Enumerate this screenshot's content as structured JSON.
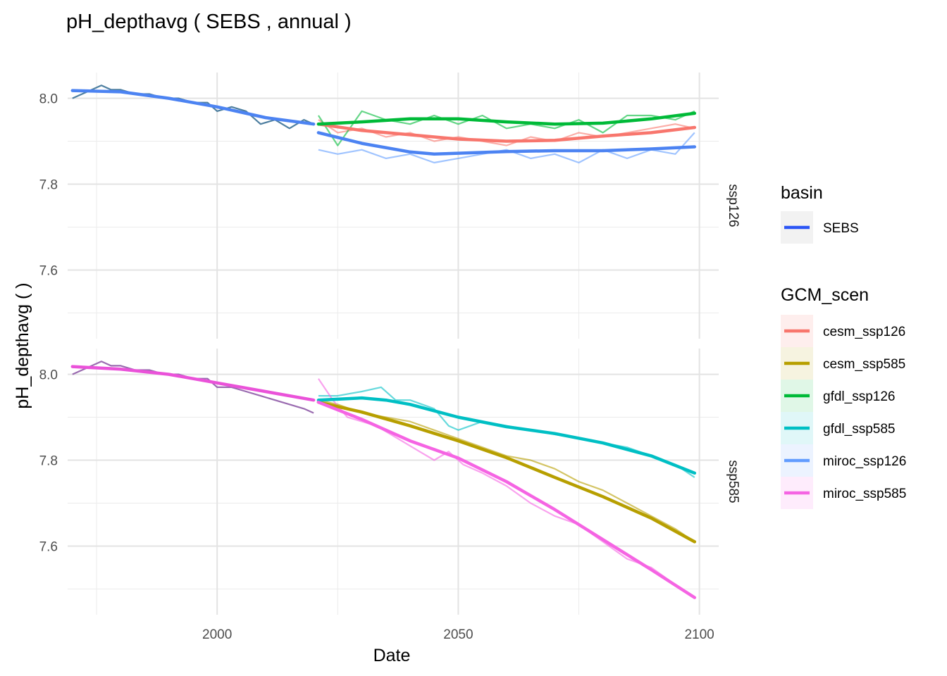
{
  "chart_data": {
    "type": "line",
    "title": "pH_depthavg ( SEBS , annual )",
    "xlabel": "Date",
    "ylabel": "pH_depthavg (  )",
    "xlim": [
      1969,
      2104
    ],
    "ylim": [
      7.44,
      8.06
    ],
    "x_ticks": [
      2000,
      2050,
      2100
    ],
    "x_tick_labels": [
      "2000",
      "2050",
      "2100"
    ],
    "y_ticks": [
      7.6,
      7.8,
      8.0
    ],
    "y_tick_labels": [
      "7.6",
      "7.8",
      "8.0"
    ],
    "grid": true,
    "facets": [
      {
        "label": "ssp126",
        "series": [
          {
            "name": "cesm_ssp126",
            "color": "#F8766D",
            "raw": [
              [
                2021,
                7.95
              ],
              [
                2025,
                7.92
              ],
              [
                2030,
                7.93
              ],
              [
                2035,
                7.91
              ],
              [
                2040,
                7.92
              ],
              [
                2045,
                7.9
              ],
              [
                2050,
                7.91
              ],
              [
                2055,
                7.9
              ],
              [
                2060,
                7.89
              ],
              [
                2065,
                7.91
              ],
              [
                2070,
                7.9
              ],
              [
                2075,
                7.92
              ],
              [
                2080,
                7.91
              ],
              [
                2085,
                7.92
              ],
              [
                2090,
                7.93
              ],
              [
                2095,
                7.94
              ],
              [
                2099,
                7.93
              ]
            ],
            "smooth": [
              [
                2021,
                7.94
              ],
              [
                2030,
                7.925
              ],
              [
                2040,
                7.915
              ],
              [
                2050,
                7.905
              ],
              [
                2060,
                7.9
              ],
              [
                2070,
                7.902
              ],
              [
                2080,
                7.912
              ],
              [
                2090,
                7.92
              ],
              [
                2099,
                7.932
              ]
            ]
          },
          {
            "name": "gfdl_ssp126",
            "color": "#00BA38",
            "raw": [
              [
                2021,
                7.96
              ],
              [
                2025,
                7.89
              ],
              [
                2030,
                7.97
              ],
              [
                2035,
                7.95
              ],
              [
                2040,
                7.94
              ],
              [
                2045,
                7.96
              ],
              [
                2050,
                7.94
              ],
              [
                2055,
                7.96
              ],
              [
                2060,
                7.93
              ],
              [
                2065,
                7.94
              ],
              [
                2070,
                7.93
              ],
              [
                2075,
                7.95
              ],
              [
                2080,
                7.92
              ],
              [
                2085,
                7.96
              ],
              [
                2090,
                7.96
              ],
              [
                2095,
                7.95
              ],
              [
                2099,
                7.97
              ]
            ],
            "smooth": [
              [
                2021,
                7.94
              ],
              [
                2030,
                7.945
              ],
              [
                2040,
                7.952
              ],
              [
                2050,
                7.952
              ],
              [
                2060,
                7.945
              ],
              [
                2070,
                7.94
              ],
              [
                2080,
                7.942
              ],
              [
                2090,
                7.952
              ],
              [
                2099,
                7.965
              ]
            ]
          },
          {
            "name": "miroc_ssp126",
            "color": "#619CFF",
            "raw": [
              [
                2021,
                7.88
              ],
              [
                2025,
                7.87
              ],
              [
                2030,
                7.88
              ],
              [
                2035,
                7.86
              ],
              [
                2040,
                7.87
              ],
              [
                2045,
                7.85
              ],
              [
                2050,
                7.86
              ],
              [
                2055,
                7.87
              ],
              [
                2060,
                7.88
              ],
              [
                2065,
                7.86
              ],
              [
                2070,
                7.87
              ],
              [
                2075,
                7.85
              ],
              [
                2080,
                7.88
              ],
              [
                2085,
                7.86
              ],
              [
                2090,
                7.88
              ],
              [
                2095,
                7.87
              ],
              [
                2099,
                7.92
              ]
            ],
            "smooth": [
              [
                2021,
                7.92
              ],
              [
                2030,
                7.895
              ],
              [
                2040,
                7.875
              ],
              [
                2045,
                7.87
              ],
              [
                2050,
                7.872
              ],
              [
                2060,
                7.876
              ],
              [
                2070,
                7.878
              ],
              [
                2080,
                7.878
              ],
              [
                2090,
                7.882
              ],
              [
                2099,
                7.887
              ]
            ]
          }
        ],
        "historical": {
          "raw": [
            [
              1970,
              8.0
            ],
            [
              1972,
              8.01
            ],
            [
              1974,
              8.02
            ],
            [
              1976,
              8.03
            ],
            [
              1978,
              8.02
            ],
            [
              1980,
              8.02
            ],
            [
              1983,
              8.01
            ],
            [
              1986,
              8.01
            ],
            [
              1989,
              8.0
            ],
            [
              1992,
              8.0
            ],
            [
              1995,
              7.99
            ],
            [
              1998,
              7.99
            ],
            [
              2000,
              7.97
            ],
            [
              2003,
              7.98
            ],
            [
              2006,
              7.97
            ],
            [
              2009,
              7.94
            ],
            [
              2012,
              7.95
            ],
            [
              2015,
              7.93
            ],
            [
              2018,
              7.95
            ],
            [
              2020,
              7.94
            ]
          ],
          "smooth": [
            [
              1970,
              8.018
            ],
            [
              1980,
              8.015
            ],
            [
              1990,
              8.0
            ],
            [
              2000,
              7.98
            ],
            [
              2010,
              7.955
            ],
            [
              2020,
              7.94
            ]
          ]
        }
      },
      {
        "label": "ssp585",
        "series": [
          {
            "name": "cesm_ssp585",
            "color": "#B79F00",
            "raw": [
              [
                2021,
                7.94
              ],
              [
                2025,
                7.93
              ],
              [
                2030,
                7.91
              ],
              [
                2035,
                7.9
              ],
              [
                2040,
                7.89
              ],
              [
                2045,
                7.87
              ],
              [
                2050,
                7.85
              ],
              [
                2055,
                7.83
              ],
              [
                2060,
                7.81
              ],
              [
                2065,
                7.8
              ],
              [
                2070,
                7.78
              ],
              [
                2075,
                7.75
              ],
              [
                2080,
                7.73
              ],
              [
                2085,
                7.7
              ],
              [
                2090,
                7.67
              ],
              [
                2095,
                7.64
              ],
              [
                2099,
                7.61
              ]
            ],
            "smooth": [
              [
                2021,
                7.935
              ],
              [
                2030,
                7.912
              ],
              [
                2040,
                7.88
              ],
              [
                2050,
                7.845
              ],
              [
                2060,
                7.806
              ],
              [
                2070,
                7.76
              ],
              [
                2080,
                7.715
              ],
              [
                2090,
                7.665
              ],
              [
                2099,
                7.61
              ]
            ]
          },
          {
            "name": "gfdl_ssp585",
            "color": "#00BFC4",
            "raw": [
              [
                2021,
                7.95
              ],
              [
                2025,
                7.95
              ],
              [
                2030,
                7.96
              ],
              [
                2034,
                7.97
              ],
              [
                2037,
                7.94
              ],
              [
                2040,
                7.94
              ],
              [
                2045,
                7.92
              ],
              [
                2048,
                7.88
              ],
              [
                2050,
                7.87
              ],
              [
                2055,
                7.89
              ],
              [
                2060,
                7.88
              ],
              [
                2065,
                7.87
              ],
              [
                2070,
                7.86
              ],
              [
                2075,
                7.85
              ],
              [
                2080,
                7.84
              ],
              [
                2085,
                7.83
              ],
              [
                2090,
                7.81
              ],
              [
                2095,
                7.79
              ],
              [
                2099,
                7.76
              ]
            ],
            "smooth": [
              [
                2021,
                7.94
              ],
              [
                2030,
                7.945
              ],
              [
                2035,
                7.94
              ],
              [
                2040,
                7.93
              ],
              [
                2050,
                7.9
              ],
              [
                2060,
                7.878
              ],
              [
                2070,
                7.862
              ],
              [
                2080,
                7.84
              ],
              [
                2090,
                7.81
              ],
              [
                2099,
                7.77
              ]
            ]
          },
          {
            "name": "miroc_ssp585",
            "color": "#F564E3",
            "raw": [
              [
                2021,
                7.99
              ],
              [
                2024,
                7.94
              ],
              [
                2027,
                7.9
              ],
              [
                2030,
                7.89
              ],
              [
                2033,
                7.88
              ],
              [
                2036,
                7.86
              ],
              [
                2039,
                7.84
              ],
              [
                2042,
                7.82
              ],
              [
                2045,
                7.8
              ],
              [
                2048,
                7.82
              ],
              [
                2051,
                7.79
              ],
              [
                2055,
                7.77
              ],
              [
                2060,
                7.74
              ],
              [
                2065,
                7.7
              ],
              [
                2070,
                7.67
              ],
              [
                2075,
                7.65
              ],
              [
                2080,
                7.61
              ],
              [
                2085,
                7.57
              ],
              [
                2090,
                7.55
              ],
              [
                2095,
                7.51
              ],
              [
                2099,
                7.48
              ]
            ],
            "smooth": [
              [
                2021,
                7.935
              ],
              [
                2030,
                7.895
              ],
              [
                2040,
                7.845
              ],
              [
                2050,
                7.805
              ],
              [
                2060,
                7.75
              ],
              [
                2070,
                7.685
              ],
              [
                2080,
                7.615
              ],
              [
                2090,
                7.545
              ],
              [
                2099,
                7.48
              ]
            ]
          }
        ],
        "historical": {
          "raw": [
            [
              1970,
              8.0
            ],
            [
              1972,
              8.01
            ],
            [
              1974,
              8.02
            ],
            [
              1976,
              8.03
            ],
            [
              1978,
              8.02
            ],
            [
              1980,
              8.02
            ],
            [
              1983,
              8.01
            ],
            [
              1986,
              8.01
            ],
            [
              1989,
              8.0
            ],
            [
              1992,
              8.0
            ],
            [
              1995,
              7.99
            ],
            [
              1998,
              7.99
            ],
            [
              2000,
              7.97
            ],
            [
              2003,
              7.97
            ],
            [
              2006,
              7.96
            ],
            [
              2009,
              7.95
            ],
            [
              2012,
              7.94
            ],
            [
              2015,
              7.93
            ],
            [
              2018,
              7.92
            ],
            [
              2020,
              7.91
            ]
          ],
          "smooth": [
            [
              1970,
              8.018
            ],
            [
              1980,
              8.012
            ],
            [
              1990,
              8.0
            ],
            [
              2000,
              7.98
            ],
            [
              2010,
              7.96
            ],
            [
              2020,
              7.94
            ]
          ]
        }
      }
    ],
    "legend": {
      "placement": "right",
      "basin": {
        "title": "basin",
        "items": [
          {
            "name": "SEBS",
            "color": "#2B55F5"
          }
        ]
      },
      "gcm": {
        "title": "GCM_scen",
        "items": [
          {
            "name": "cesm_ssp126",
            "color": "#F8766D"
          },
          {
            "name": "cesm_ssp585",
            "color": "#B79F00"
          },
          {
            "name": "gfdl_ssp126",
            "color": "#00BA38"
          },
          {
            "name": "gfdl_ssp585",
            "color": "#00BFC4"
          },
          {
            "name": "miroc_ssp126",
            "color": "#619CFF"
          },
          {
            "name": "miroc_ssp585",
            "color": "#F564E3"
          }
        ]
      }
    }
  }
}
